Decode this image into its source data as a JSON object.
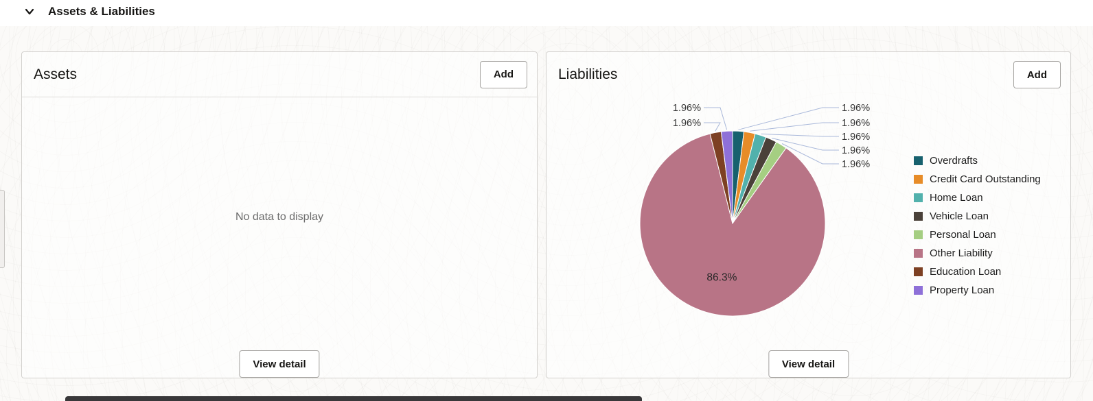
{
  "section": {
    "title": "Assets & Liabilities"
  },
  "assets_card": {
    "title": "Assets",
    "add_button": "Add",
    "empty_message": "No data to display",
    "view_detail_button": "View detail"
  },
  "liabilities_card": {
    "title": "Liabilities",
    "add_button": "Add",
    "view_detail_button": "View detail"
  },
  "chart_data": {
    "type": "pie",
    "title": "Liabilities",
    "legend_position": "right",
    "callout_line_color": "#a9b8da",
    "slices": [
      {
        "label": "Overdrafts",
        "value": 1.96,
        "display": "1.96%",
        "color": "#17616e",
        "callout_side": "right"
      },
      {
        "label": "Credit Card Outstanding",
        "value": 1.96,
        "display": "1.96%",
        "color": "#e78c28",
        "callout_side": "right"
      },
      {
        "label": "Home Loan",
        "value": 1.96,
        "display": "1.96%",
        "color": "#52b1ac",
        "callout_side": "right"
      },
      {
        "label": "Vehicle Loan",
        "value": 1.96,
        "display": "1.96%",
        "color": "#4a4139",
        "callout_side": "right"
      },
      {
        "label": "Personal Loan",
        "value": 1.96,
        "display": "1.96%",
        "color": "#a5ce82",
        "callout_side": "right"
      },
      {
        "label": "Other Liability",
        "value": 86.3,
        "display": "86.3%",
        "color": "#b87486",
        "callout_side": "inside"
      },
      {
        "label": "Education Loan",
        "value": 1.96,
        "display": "1.96%",
        "color": "#7d4023",
        "callout_side": "left"
      },
      {
        "label": "Property Loan",
        "value": 1.96,
        "display": "1.96%",
        "color": "#8e70d8",
        "callout_side": "left"
      }
    ]
  }
}
